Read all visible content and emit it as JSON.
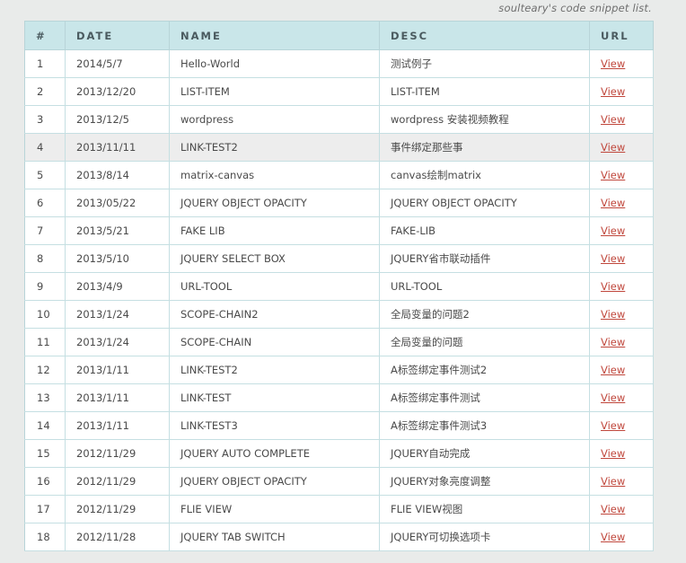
{
  "caption": "soulteary's code snippet list.",
  "table": {
    "headers": [
      "#",
      "DATE",
      "NAME",
      "DESC",
      "URL"
    ],
    "rows": [
      {
        "num": "1",
        "date": "2014/5/7",
        "name": "Hello-World",
        "desc": "测试例子",
        "url": "View"
      },
      {
        "num": "2",
        "date": "2013/12/20",
        "name": "LIST-ITEM",
        "desc": "LIST-ITEM",
        "url": "View"
      },
      {
        "num": "3",
        "date": "2013/12/5",
        "name": "wordpress",
        "desc": "wordpress 安装视频教程",
        "url": "View"
      },
      {
        "num": "4",
        "date": "2013/11/11",
        "name": "LINK-TEST2",
        "desc": "事件绑定那些事",
        "url": "View"
      },
      {
        "num": "5",
        "date": "2013/8/14",
        "name": "matrix-canvas",
        "desc": "canvas绘制matrix",
        "url": "View"
      },
      {
        "num": "6",
        "date": "2013/05/22",
        "name": "JQUERY OBJECT OPACITY",
        "desc": "JQUERY OBJECT OPACITY",
        "url": "View"
      },
      {
        "num": "7",
        "date": "2013/5/21",
        "name": "FAKE LIB",
        "desc": "FAKE-LIB",
        "url": "View"
      },
      {
        "num": "8",
        "date": "2013/5/10",
        "name": "JQUERY SELECT BOX",
        "desc": "JQUERY省市联动插件",
        "url": "View"
      },
      {
        "num": "9",
        "date": "2013/4/9",
        "name": "URL-TOOL",
        "desc": "URL-TOOL",
        "url": "View"
      },
      {
        "num": "10",
        "date": "2013/1/24",
        "name": "SCOPE-CHAIN2",
        "desc": "全局变量的问题2",
        "url": "View"
      },
      {
        "num": "11",
        "date": "2013/1/24",
        "name": "SCOPE-CHAIN",
        "desc": "全局变量的问题",
        "url": "View"
      },
      {
        "num": "12",
        "date": "2013/1/11",
        "name": "LINK-TEST2",
        "desc": "A标签绑定事件测试2",
        "url": "View"
      },
      {
        "num": "13",
        "date": "2013/1/11",
        "name": "LINK-TEST",
        "desc": "A标签绑定事件测试",
        "url": "View"
      },
      {
        "num": "14",
        "date": "2013/1/11",
        "name": "LINK-TEST3",
        "desc": "A标签绑定事件测试3",
        "url": "View"
      },
      {
        "num": "15",
        "date": "2012/11/29",
        "name": "JQUERY AUTO COMPLETE",
        "desc": "JQUERY自动完成",
        "url": "View"
      },
      {
        "num": "16",
        "date": "2012/11/29",
        "name": "JQUERY OBJECT OPACITY",
        "desc": "JQUERY对象亮度调整",
        "url": "View"
      },
      {
        "num": "17",
        "date": "2012/11/29",
        "name": "FLIE VIEW",
        "desc": "FLIE VIEW视图",
        "url": "View"
      },
      {
        "num": "18",
        "date": "2012/11/28",
        "name": "JQUERY TAB SWITCH",
        "desc": "JQUERY可切换选项卡",
        "url": "View"
      }
    ],
    "highlighted_row": "4"
  },
  "colors": {
    "background": "#e9ebea",
    "header_bg": "#c9e6e9",
    "border": "#b8d4d8",
    "link": "#c0473c",
    "highlight_row": "#ededed"
  }
}
